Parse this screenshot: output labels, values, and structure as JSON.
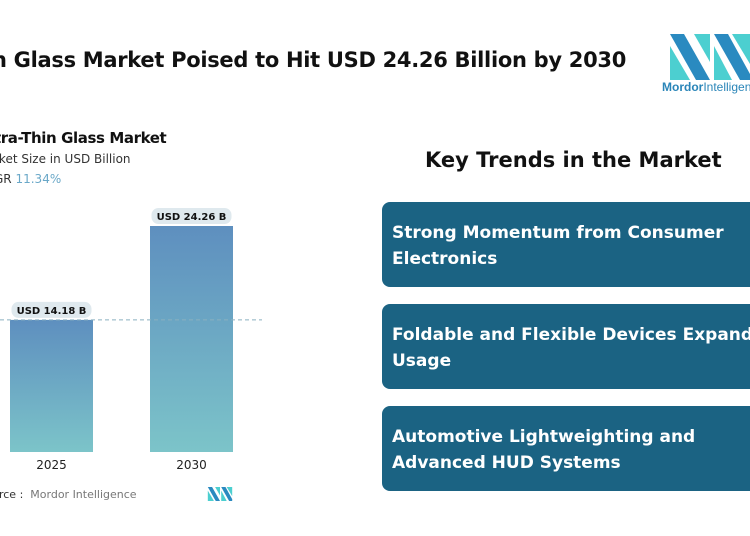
{
  "header": {
    "title": "n Glass Market Poised to Hit USD 24.26 Billion by 2030"
  },
  "logo": {
    "text_bold": "Mordor",
    "text_rest": "Intelligen",
    "colors": [
      "#2a8ac0",
      "#4ccfd0"
    ]
  },
  "chart_data": {
    "type": "bar",
    "title": "tra-Thin Glass Market",
    "subtitle": "rket Size in USD Billion",
    "cagr_label": "GR",
    "cagr_value": "11.34%",
    "categories": [
      "2025",
      "2030"
    ],
    "values": [
      14.18,
      24.26
    ],
    "data_labels": [
      "USD 14.18 B",
      "USD 24.26 B"
    ],
    "ylim": [
      0,
      26
    ],
    "grid": false,
    "reference_line": 14.18,
    "bar_gradient": [
      "#5e8fbf",
      "#7cc4c9"
    ]
  },
  "source": {
    "label": "urce :",
    "value": "Mordor Intelligence"
  },
  "trends": {
    "heading": "Key Trends in the Market",
    "items": [
      "Strong Momentum from Consumer Electronics",
      "Foldable and Flexible Devices Expand Usage",
      "Automotive Lightweighting and Advanced HUD Systems"
    ],
    "card_color": "#1b6383"
  }
}
